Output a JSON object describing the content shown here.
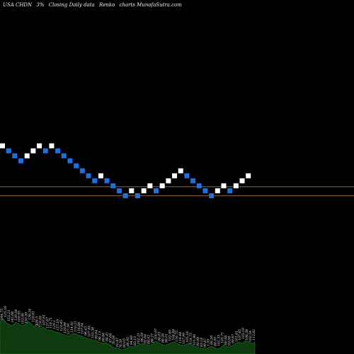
{
  "header": {
    "ticker": "USA CHDN",
    "pct": "3%",
    "closing": "Closing Daily data",
    "chart_kind": "Renko",
    "site": "charts MunafaSutra.com"
  },
  "colors": {
    "background": "#000000",
    "up_brick": "#ffffff",
    "down_brick": "#1e6fe0",
    "reference_line": "#b07a2e",
    "volume_fill": "#0f3a0f",
    "volume_line": "#2a7a2a"
  },
  "chart_data": {
    "type": "renko",
    "brick_size_pct": 3,
    "bricks": [
      {
        "dir": "up",
        "level": 31
      },
      {
        "dir": "down",
        "level": 30
      },
      {
        "dir": "down",
        "level": 29
      },
      {
        "dir": "down",
        "level": 28
      },
      {
        "dir": "up",
        "level": 29
      },
      {
        "dir": "up",
        "level": 30
      },
      {
        "dir": "up",
        "level": 31
      },
      {
        "dir": "down",
        "level": 30
      },
      {
        "dir": "up",
        "level": 31
      },
      {
        "dir": "down",
        "level": 30
      },
      {
        "dir": "down",
        "level": 29
      },
      {
        "dir": "down",
        "level": 28
      },
      {
        "dir": "down",
        "level": 27
      },
      {
        "dir": "down",
        "level": 26
      },
      {
        "dir": "down",
        "level": 25
      },
      {
        "dir": "down",
        "level": 24
      },
      {
        "dir": "up",
        "level": 25
      },
      {
        "dir": "down",
        "level": 24
      },
      {
        "dir": "down",
        "level": 23
      },
      {
        "dir": "down",
        "level": 22
      },
      {
        "dir": "down",
        "level": 21
      },
      {
        "dir": "up",
        "level": 22
      },
      {
        "dir": "down",
        "level": 21
      },
      {
        "dir": "up",
        "level": 22
      },
      {
        "dir": "up",
        "level": 23
      },
      {
        "dir": "down",
        "level": 22
      },
      {
        "dir": "up",
        "level": 23
      },
      {
        "dir": "up",
        "level": 24
      },
      {
        "dir": "up",
        "level": 25
      },
      {
        "dir": "up",
        "level": 26
      },
      {
        "dir": "down",
        "level": 25
      },
      {
        "dir": "down",
        "level": 24
      },
      {
        "dir": "down",
        "level": 23
      },
      {
        "dir": "down",
        "level": 22
      },
      {
        "dir": "down",
        "level": 21
      },
      {
        "dir": "up",
        "level": 22
      },
      {
        "dir": "up",
        "level": 23
      },
      {
        "dir": "down",
        "level": 22
      },
      {
        "dir": "up",
        "level": 23
      },
      {
        "dir": "up",
        "level": 24
      },
      {
        "dir": "up",
        "level": 25
      }
    ],
    "reference_lines": [
      {
        "level": 22.8
      },
      {
        "level": 21.0
      }
    ],
    "volume": [
      46,
      50,
      44,
      42,
      40,
      45,
      43,
      40,
      41,
      46,
      43,
      38,
      44,
      36,
      38,
      34,
      34,
      33,
      31,
      30,
      28,
      27,
      25,
      28,
      29,
      27,
      26,
      24,
      22,
      21,
      20,
      19,
      17,
      15,
      16,
      14,
      11,
      9,
      8,
      6,
      7,
      9,
      11,
      10,
      12,
      14,
      15,
      13,
      12,
      14,
      18,
      16,
      14,
      12,
      14,
      16,
      17,
      15,
      13,
      12,
      14,
      15,
      12,
      10,
      9,
      8,
      7,
      9,
      11,
      9,
      7,
      9,
      13,
      11,
      10,
      13,
      15,
      17,
      15,
      19,
      17,
      15,
      17
    ],
    "volume_labels": [
      "144.75",
      "125.16",
      "153.23",
      "145.08",
      "139.54",
      "109.95",
      "153.06",
      "150.59",
      "136.24",
      "129.61",
      "126.5",
      "118.09",
      "107.61",
      "137.67",
      "118.71",
      "129.1",
      "157.19",
      "123.45",
      "120.84",
      "127.59",
      "114.92",
      "110.21",
      "116.68",
      "107.04",
      "96.43",
      "107.95",
      "103.38",
      "99.64",
      "96.13",
      "98.66",
      "84.41",
      "87.68",
      "76.04",
      "92.87",
      "76.59",
      "80.05",
      "86.95",
      "94.69",
      "83.15",
      "102.21",
      "96.54",
      "92.64",
      "88.02",
      "88.27",
      "100.07",
      "98.03",
      "86.26",
      "98.01",
      "102.69",
      "104.84",
      "116.75",
      "114.48",
      "107.99",
      "105.16",
      "114.75",
      "101.96",
      "90.98",
      "93.18",
      "99.87",
      "1.55",
      "99.59",
      "88.00",
      "102.33",
      "105.71",
      "90.98",
      "93.08",
      "99.67",
      "101.61",
      "107.45",
      "105.19",
      "106.38",
      "102.54",
      "113.82"
    ]
  }
}
